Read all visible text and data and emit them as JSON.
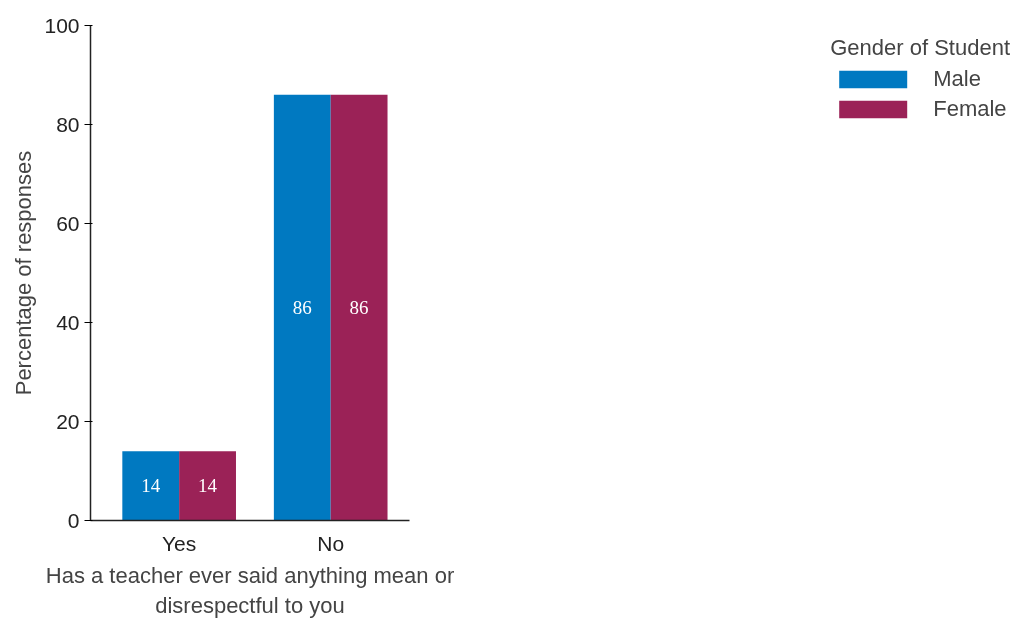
{
  "chart_data": {
    "type": "bar",
    "categories": [
      "Yes",
      "No"
    ],
    "xlabel": "Has a teacher ever said anything mean or disrespectful to you",
    "ylabel": "Percentage of responses",
    "legend_title": "Gender of Student",
    "ylim": [
      0,
      100
    ],
    "yticks": [
      0,
      20,
      40,
      60,
      80,
      100
    ],
    "grid": false,
    "legend": "right",
    "data_labels": true,
    "series": [
      {
        "name": "Male",
        "color": "#0079c1",
        "values": [
          14,
          86
        ]
      },
      {
        "name": "Female",
        "color": "#9b2257",
        "values": [
          14,
          86
        ]
      }
    ]
  }
}
